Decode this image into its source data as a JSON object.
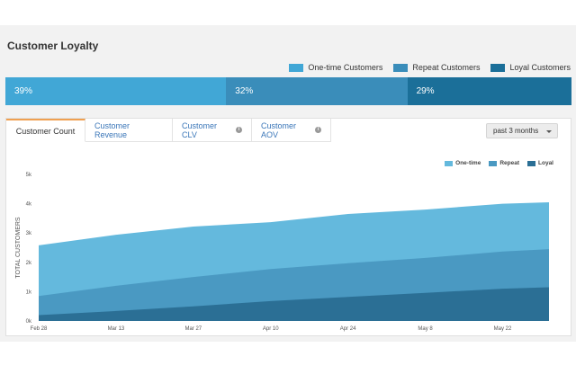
{
  "title": "Customer Loyalty",
  "legend": [
    {
      "label": "One-time Customers",
      "color": "#41a7d6"
    },
    {
      "label": "Repeat Customers",
      "color": "#3a8dba"
    },
    {
      "label": "Loyal Customers",
      "color": "#1b6f99"
    }
  ],
  "distribution": [
    {
      "label": "39%",
      "value": 39,
      "color": "#41a7d6"
    },
    {
      "label": "32%",
      "value": 32,
      "color": "#3a8dba"
    },
    {
      "label": "29%",
      "value": 29,
      "color": "#1b6f99"
    }
  ],
  "tabs": [
    {
      "label": "Customer Count",
      "active": true,
      "info": false
    },
    {
      "label": "Customer Revenue",
      "active": false,
      "info": false
    },
    {
      "label": "Customer CLV",
      "active": false,
      "info": true
    },
    {
      "label": "Customer AOV",
      "active": false,
      "info": true
    }
  ],
  "period_select": {
    "value": "past 3 months"
  },
  "chart_legend": [
    {
      "label": "One-time",
      "color": "#64b9dd"
    },
    {
      "label": "Repeat",
      "color": "#4a99c2"
    },
    {
      "label": "Loyal",
      "color": "#2b6f95"
    }
  ],
  "chart_data": {
    "type": "area",
    "stacked": true,
    "title": "",
    "xlabel": "",
    "ylabel": "TOTAL CUSTOMERS",
    "ylim": [
      0,
      5000
    ],
    "y_ticks": [
      "0k",
      "1k",
      "2k",
      "3k",
      "4k",
      "5k"
    ],
    "x_ticks": [
      "Feb 28",
      "Mar 13",
      "Mar 27",
      "Apr 10",
      "Apr 24",
      "May 8",
      "May 22"
    ],
    "x": [
      0,
      1,
      2,
      3,
      4,
      5,
      6,
      6.6
    ],
    "series": [
      {
        "name": "Loyal",
        "color": "#2b6f95",
        "values": [
          200,
          340,
          500,
          680,
          820,
          960,
          1100,
          1150
        ]
      },
      {
        "name": "Repeat",
        "color": "#4a99c2",
        "values": [
          650,
          860,
          1000,
          1090,
          1150,
          1190,
          1270,
          1300
        ]
      },
      {
        "name": "One-time",
        "color": "#64b9dd",
        "values": [
          1730,
          1740,
          1720,
          1600,
          1680,
          1650,
          1630,
          1600
        ]
      }
    ],
    "grid": false,
    "legend": "top-right"
  }
}
